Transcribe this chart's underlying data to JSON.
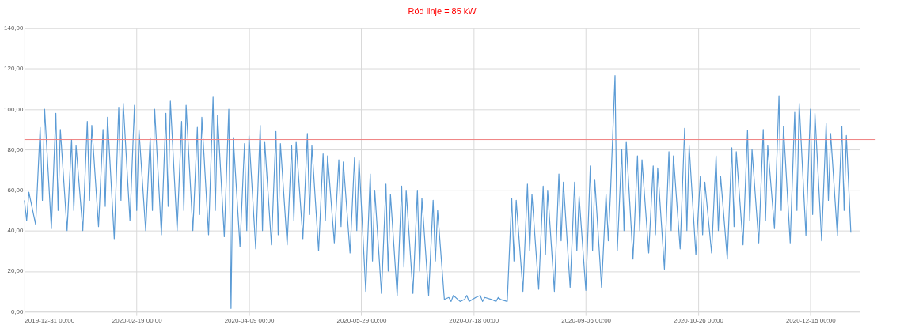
{
  "chart_data": {
    "type": "line",
    "title": "Röd linje = 85 kW",
    "x": [
      "2019-12-31",
      "2020-01-01",
      "2020-01-02",
      "2020-01-05",
      "2020-01-07",
      "2020-01-08",
      "2020-01-09",
      "2020-01-12",
      "2020-01-14",
      "2020-01-15",
      "2020-01-16",
      "2020-01-19",
      "2020-01-21",
      "2020-01-22",
      "2020-01-23",
      "2020-01-26",
      "2020-01-28",
      "2020-01-29",
      "2020-01-30",
      "2020-02-02",
      "2020-02-04",
      "2020-02-05",
      "2020-02-06",
      "2020-02-09",
      "2020-02-11",
      "2020-02-12",
      "2020-02-13",
      "2020-02-16",
      "2020-02-18",
      "2020-02-19",
      "2020-02-20",
      "2020-02-23",
      "2020-02-25",
      "2020-02-26",
      "2020-02-27",
      "2020-03-01",
      "2020-03-03",
      "2020-03-04",
      "2020-03-05",
      "2020-03-08",
      "2020-03-10",
      "2020-03-11",
      "2020-03-12",
      "2020-03-15",
      "2020-03-17",
      "2020-03-18",
      "2020-03-19",
      "2020-03-22",
      "2020-03-24",
      "2020-03-25",
      "2020-03-26",
      "2020-03-29",
      "2020-03-31",
      "2020-04-01",
      "2020-04-02",
      "2020-04-05",
      "2020-04-07",
      "2020-04-08",
      "2020-04-09",
      "2020-04-12",
      "2020-04-14",
      "2020-04-15",
      "2020-04-16",
      "2020-04-19",
      "2020-04-21",
      "2020-04-22",
      "2020-04-23",
      "2020-04-26",
      "2020-04-28",
      "2020-04-29",
      "2020-04-30",
      "2020-05-03",
      "2020-05-05",
      "2020-05-06",
      "2020-05-07",
      "2020-05-10",
      "2020-05-12",
      "2020-05-13",
      "2020-05-14",
      "2020-05-17",
      "2020-05-19",
      "2020-05-20",
      "2020-05-21",
      "2020-05-24",
      "2020-05-26",
      "2020-05-27",
      "2020-05-28",
      "2020-05-31",
      "2020-06-02",
      "2020-06-03",
      "2020-06-04",
      "2020-06-07",
      "2020-06-09",
      "2020-06-10",
      "2020-06-11",
      "2020-06-14",
      "2020-06-16",
      "2020-06-17",
      "2020-06-18",
      "2020-06-21",
      "2020-06-23",
      "2020-06-24",
      "2020-06-25",
      "2020-06-28",
      "2020-06-30",
      "2020-07-01",
      "2020-07-02",
      "2020-07-05",
      "2020-07-07",
      "2020-07-08",
      "2020-07-09",
      "2020-07-12",
      "2020-07-14",
      "2020-07-15",
      "2020-07-16",
      "2020-07-19",
      "2020-07-21",
      "2020-07-22",
      "2020-07-23",
      "2020-07-26",
      "2020-07-28",
      "2020-07-29",
      "2020-07-30",
      "2020-08-02",
      "2020-08-04",
      "2020-08-05",
      "2020-08-06",
      "2020-08-09",
      "2020-08-11",
      "2020-08-12",
      "2020-08-13",
      "2020-08-16",
      "2020-08-18",
      "2020-08-19",
      "2020-08-20",
      "2020-08-23",
      "2020-08-25",
      "2020-08-26",
      "2020-08-27",
      "2020-08-30",
      "2020-09-01",
      "2020-09-02",
      "2020-09-03",
      "2020-09-06",
      "2020-09-08",
      "2020-09-09",
      "2020-09-10",
      "2020-09-13",
      "2020-09-15",
      "2020-09-16",
      "2020-09-17",
      "2020-09-19",
      "2020-09-20",
      "2020-09-22",
      "2020-09-23",
      "2020-09-24",
      "2020-09-27",
      "2020-09-29",
      "2020-09-30",
      "2020-10-01",
      "2020-10-04",
      "2020-10-06",
      "2020-10-07",
      "2020-10-08",
      "2020-10-11",
      "2020-10-13",
      "2020-10-14",
      "2020-10-15",
      "2020-10-18",
      "2020-10-20",
      "2020-10-21",
      "2020-10-22",
      "2020-10-25",
      "2020-10-27",
      "2020-10-28",
      "2020-10-29",
      "2020-11-01",
      "2020-11-03",
      "2020-11-04",
      "2020-11-05",
      "2020-11-08",
      "2020-11-10",
      "2020-11-11",
      "2020-11-12",
      "2020-11-15",
      "2020-11-17",
      "2020-11-18",
      "2020-11-19",
      "2020-11-22",
      "2020-11-24",
      "2020-11-25",
      "2020-11-26",
      "2020-11-29",
      "2020-12-01",
      "2020-12-02",
      "2020-12-03",
      "2020-12-06",
      "2020-12-08",
      "2020-12-09",
      "2020-12-10",
      "2020-12-13",
      "2020-12-15",
      "2020-12-16",
      "2020-12-17",
      "2020-12-20",
      "2020-12-22",
      "2020-12-23",
      "2020-12-24",
      "2020-12-27",
      "2020-12-29",
      "2020-12-30",
      "2020-12-31",
      "2021-01-02"
    ],
    "series": [
      {
        "color": "#5b9bd5",
        "values": [
          55,
          45,
          59,
          43,
          91,
          55,
          100,
          41,
          98,
          50,
          90,
          40,
          85,
          50,
          82,
          40,
          94,
          55,
          92,
          42,
          90,
          52,
          96,
          36,
          101,
          55,
          103,
          45,
          102,
          50,
          90,
          40,
          86,
          50,
          100,
          38,
          98,
          52,
          104,
          40,
          94,
          50,
          102,
          40,
          91,
          48,
          96,
          38,
          106,
          50,
          97,
          37,
          100,
          1.5,
          86,
          32,
          83,
          40,
          87,
          31,
          92,
          40,
          84,
          33,
          89,
          38,
          83,
          33,
          82,
          45,
          84,
          36,
          88,
          48,
          82,
          30,
          78,
          45,
          77,
          34,
          75,
          42,
          74,
          29,
          76,
          40,
          75,
          10,
          68,
          25,
          60,
          9,
          63,
          20,
          58,
          8,
          62,
          22,
          60,
          9,
          60,
          20,
          56,
          8,
          55,
          25,
          50,
          6,
          7,
          5,
          8,
          5,
          6,
          8,
          5,
          7,
          8,
          5,
          7,
          6,
          5,
          7,
          6,
          5,
          56,
          25,
          55,
          10,
          63,
          30,
          58,
          11,
          62,
          28,
          60,
          10,
          68,
          35,
          64,
          12,
          64,
          30,
          57,
          10.5,
          72,
          30,
          65,
          12,
          58,
          35,
          59,
          116.6,
          30,
          80,
          40,
          84,
          26,
          77,
          40,
          75,
          29,
          72,
          38,
          71,
          21,
          79,
          40,
          77,
          31,
          90.6,
          40,
          82,
          28,
          67,
          38,
          64,
          29,
          77,
          40,
          67,
          26,
          81,
          42,
          79,
          33,
          89.6,
          45,
          80,
          34,
          90,
          45,
          82,
          41,
          106.7,
          50,
          91.5,
          34,
          98.5,
          50,
          103,
          37.7,
          100,
          48,
          98,
          35,
          93,
          55,
          88,
          37.7,
          91.5,
          50,
          87,
          39
        ]
      }
    ],
    "xlim": [
      "2019-12-31",
      "2021-01-06"
    ],
    "xticks": [
      {
        "value": "2019-12-31",
        "label": "2019-12-31 00:00"
      },
      {
        "value": "2020-02-19",
        "label": "2020-02-19 00:00"
      },
      {
        "value": "2020-04-09",
        "label": "2020-04-09 00:00"
      },
      {
        "value": "2020-05-29",
        "label": "2020-05-29 00:00"
      },
      {
        "value": "2020-07-18",
        "label": "2020-07-18 00:00"
      },
      {
        "value": "2020-09-06",
        "label": "2020-09-06 00:00"
      },
      {
        "value": "2020-10-26",
        "label": "2020-10-26 00:00"
      },
      {
        "value": "2020-12-15",
        "label": "2020-12-15 00:00"
      }
    ],
    "ylim": [
      0,
      140
    ],
    "yticks": [
      {
        "value": 0,
        "label": "0,00"
      },
      {
        "value": 20,
        "label": "20,00"
      },
      {
        "value": 40,
        "label": "40,00"
      },
      {
        "value": 60,
        "label": "60,00"
      },
      {
        "value": 80,
        "label": "80,00"
      },
      {
        "value": 100,
        "label": "100,00"
      },
      {
        "value": 120,
        "label": "120,00"
      },
      {
        "value": 140,
        "label": "140,00"
      }
    ],
    "ref_lines": [
      {
        "axis": "y",
        "value": 85,
        "color": "#f08080"
      }
    ],
    "grid": true,
    "line_style": "solid",
    "marker": "none"
  }
}
